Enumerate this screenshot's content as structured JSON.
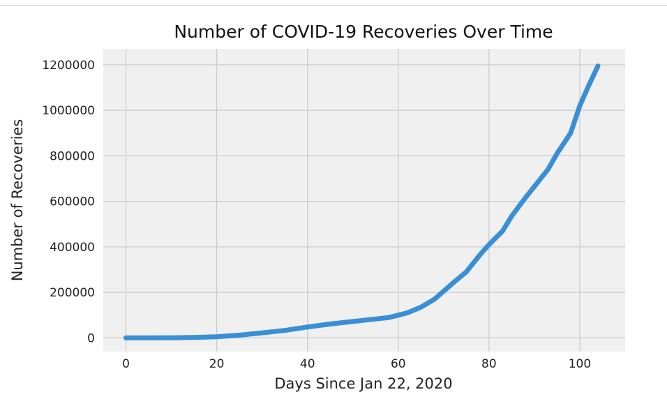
{
  "chart_data": {
    "type": "line",
    "title": "Number of COVID-19 Recoveries Over Time",
    "xlabel": "Days Since Jan 22, 2020",
    "ylabel": "Number of Recoveries",
    "xlim": [
      -5,
      110
    ],
    "ylim": [
      -60000,
      1270000
    ],
    "xticks": [
      0,
      20,
      40,
      60,
      80,
      100
    ],
    "yticks": [
      0,
      200000,
      400000,
      600000,
      800000,
      1000000,
      1200000
    ],
    "grid": true,
    "series": [
      {
        "color": "#3a8fd4",
        "x": [
          0,
          5,
          10,
          15,
          20,
          25,
          30,
          35,
          40,
          45,
          50,
          55,
          58,
          60,
          62,
          65,
          68,
          70,
          72,
          75,
          78,
          80,
          83,
          85,
          88,
          90,
          93,
          95,
          98,
          100,
          102,
          104
        ],
        "y": [
          0,
          100,
          500,
          2000,
          5000,
          12000,
          22000,
          33000,
          48000,
          61000,
          72000,
          83000,
          90000,
          100000,
          110000,
          135000,
          170000,
          205000,
          240000,
          290000,
          365000,
          410000,
          470000,
          535000,
          615000,
          665000,
          740000,
          810000,
          900000,
          1020000,
          1110000,
          1195000
        ]
      }
    ]
  }
}
